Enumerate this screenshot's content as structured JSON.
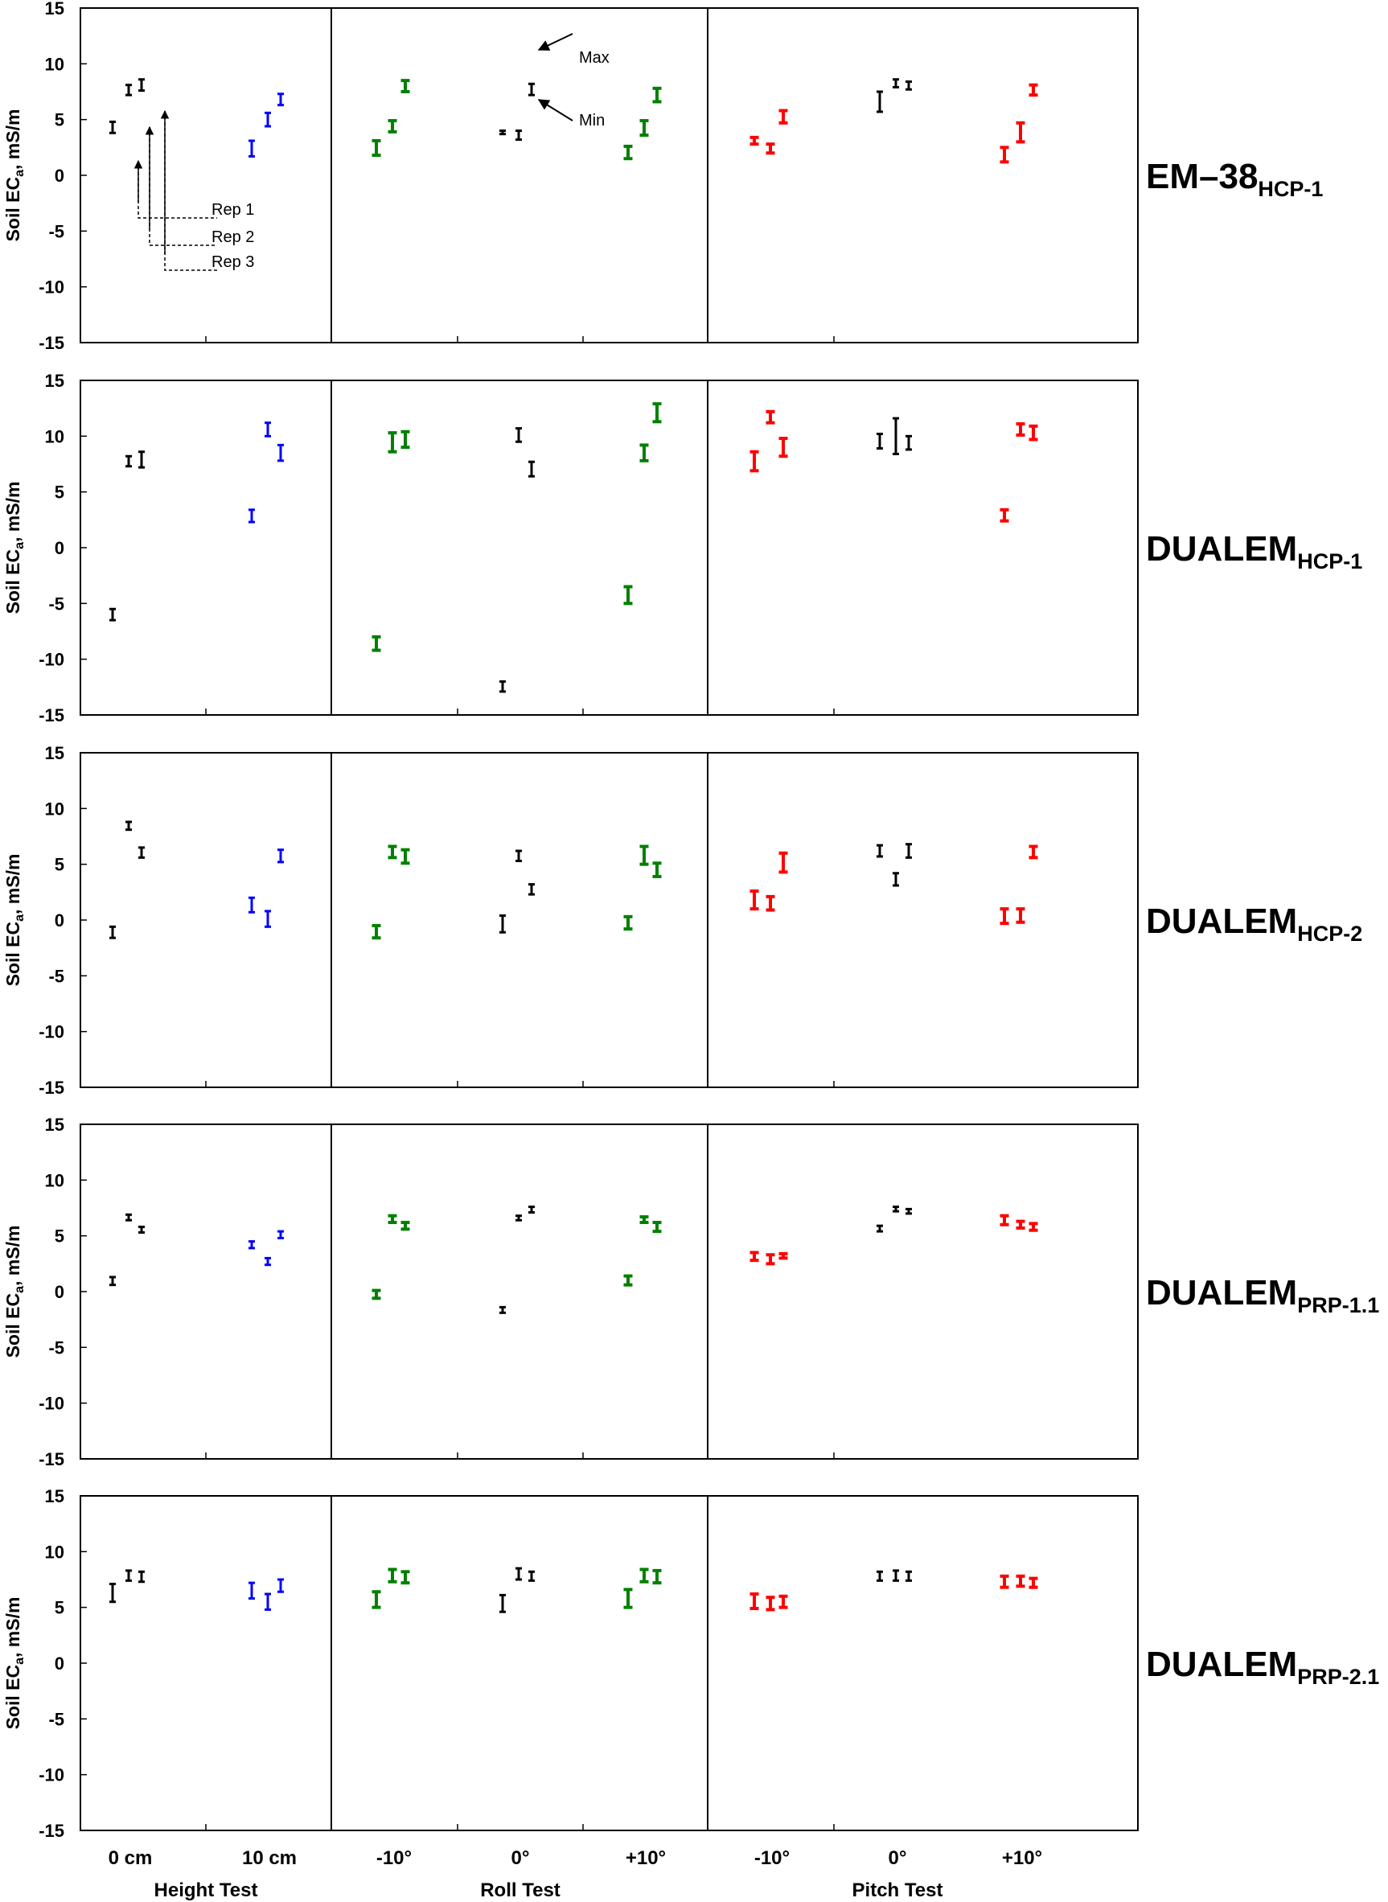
{
  "chart_data": {
    "type": "range",
    "y_ticks": [
      "15",
      "10",
      "5",
      "0",
      "-5",
      "-10",
      "-15"
    ],
    "ylim": [
      -15,
      15
    ],
    "ylabel": "Soil EC",
    "ylabel_sub": "a",
    "ylabel_unit": ", mS/m",
    "x_categories": [
      "0 cm",
      "10 cm",
      "-10°",
      "0°",
      "+10°",
      "-10°",
      "0°",
      "+10°"
    ],
    "x_groups": [
      "Height Test",
      "Roll Test",
      "Pitch Test"
    ],
    "category_colors": [
      "#000000",
      "#0000ff",
      "#008000",
      "#000000",
      "#008000",
      "#ff0000",
      "#000000",
      "#ff0000"
    ],
    "annotations": {
      "max_label": "Max",
      "min_label": "Min",
      "reps": [
        "Rep 1",
        "Rep 2",
        "Rep 3"
      ]
    },
    "panels": [
      {
        "name": "EM–38",
        "sub": "HCP-1",
        "ranges": [
          [
            [
              3.8,
              4.8
            ],
            [
              7.2,
              8.1
            ],
            [
              7.6,
              8.6
            ]
          ],
          [
            [
              1.7,
              3.1
            ],
            [
              4.4,
              5.6
            ],
            [
              6.3,
              7.3
            ]
          ],
          [
            [
              1.8,
              3.1
            ],
            [
              3.9,
              4.9
            ],
            [
              7.5,
              8.5
            ]
          ],
          [
            [
              3.7,
              4.0
            ],
            [
              3.2,
              4.0
            ],
            [
              7.2,
              8.2
            ]
          ],
          [
            [
              1.5,
              2.6
            ],
            [
              3.6,
              4.9
            ],
            [
              6.6,
              7.8
            ]
          ],
          [
            [
              2.8,
              3.4
            ],
            [
              2.0,
              2.8
            ],
            [
              4.7,
              5.8
            ]
          ],
          [
            [
              5.7,
              7.5
            ],
            [
              7.9,
              8.6
            ],
            [
              7.7,
              8.4
            ]
          ],
          [
            [
              1.2,
              2.5
            ],
            [
              3.0,
              4.7
            ],
            [
              7.2,
              8.1
            ]
          ]
        ]
      },
      {
        "name": "DUALEM",
        "sub": "HCP-1",
        "ranges": [
          [
            [
              -6.5,
              -5.5
            ],
            [
              7.3,
              8.2
            ],
            [
              7.2,
              8.6
            ]
          ],
          [
            [
              2.3,
              3.4
            ],
            [
              10.0,
              11.2
            ],
            [
              7.8,
              9.2
            ]
          ],
          [
            [
              -9.2,
              -8.0
            ],
            [
              8.6,
              10.3
            ],
            [
              9.0,
              10.4
            ]
          ],
          [
            [
              -12.9,
              -12.0
            ],
            [
              9.5,
              10.7
            ],
            [
              6.4,
              7.7
            ]
          ],
          [
            [
              -5.0,
              -3.5
            ],
            [
              7.8,
              9.2
            ],
            [
              11.3,
              12.9
            ]
          ],
          [
            [
              6.9,
              8.6
            ],
            [
              11.2,
              12.2
            ],
            [
              8.2,
              9.8
            ]
          ],
          [
            [
              8.9,
              10.2
            ],
            [
              8.4,
              11.6
            ],
            [
              8.8,
              10.0
            ]
          ],
          [
            [
              2.4,
              3.4
            ],
            [
              10.1,
              11.1
            ],
            [
              9.7,
              10.9
            ]
          ]
        ]
      },
      {
        "name": "DUALEM",
        "sub": "HCP-2",
        "ranges": [
          [
            [
              -1.6,
              -0.6
            ],
            [
              8.1,
              8.8
            ],
            [
              5.6,
              6.5
            ]
          ],
          [
            [
              0.7,
              2.0
            ],
            [
              -0.6,
              0.8
            ],
            [
              5.2,
              6.3
            ]
          ],
          [
            [
              -1.6,
              -0.5
            ],
            [
              5.6,
              6.6
            ],
            [
              5.1,
              6.3
            ]
          ],
          [
            [
              -1.1,
              0.4
            ],
            [
              5.3,
              6.2
            ],
            [
              2.3,
              3.2
            ]
          ],
          [
            [
              -0.8,
              0.3
            ],
            [
              5.0,
              6.6
            ],
            [
              3.9,
              5.1
            ]
          ],
          [
            [
              1.0,
              2.6
            ],
            [
              0.9,
              2.1
            ],
            [
              4.3,
              6.0
            ]
          ],
          [
            [
              5.7,
              6.7
            ],
            [
              3.1,
              4.2
            ],
            [
              5.6,
              6.8
            ]
          ],
          [
            [
              -0.3,
              1.0
            ],
            [
              -0.2,
              1.0
            ],
            [
              5.6,
              6.6
            ]
          ]
        ]
      },
      {
        "name": "DUALEM",
        "sub": "PRP-1.1",
        "ranges": [
          [
            [
              0.6,
              1.3
            ],
            [
              6.4,
              6.9
            ],
            [
              5.3,
              5.8
            ]
          ],
          [
            [
              3.9,
              4.5
            ],
            [
              2.4,
              3.0
            ],
            [
              4.8,
              5.4
            ]
          ],
          [
            [
              -0.6,
              0.1
            ],
            [
              6.2,
              6.8
            ],
            [
              5.6,
              6.2
            ]
          ],
          [
            [
              -1.9,
              -1.4
            ],
            [
              6.4,
              6.8
            ],
            [
              7.1,
              7.6
            ]
          ],
          [
            [
              0.6,
              1.4
            ],
            [
              6.2,
              6.7
            ],
            [
              5.4,
              6.2
            ]
          ],
          [
            [
              2.8,
              3.5
            ],
            [
              2.5,
              3.3
            ],
            [
              3.0,
              3.4
            ]
          ],
          [
            [
              5.4,
              5.9
            ],
            [
              7.2,
              7.6
            ],
            [
              7.0,
              7.4
            ]
          ],
          [
            [
              6.0,
              6.8
            ],
            [
              5.7,
              6.3
            ],
            [
              5.5,
              6.1
            ]
          ]
        ]
      },
      {
        "name": "DUALEM",
        "sub": "PRP-2.1",
        "ranges": [
          [
            [
              5.5,
              7.1
            ],
            [
              7.4,
              8.3
            ],
            [
              7.3,
              8.2
            ]
          ],
          [
            [
              5.8,
              7.2
            ],
            [
              4.8,
              6.2
            ],
            [
              6.4,
              7.5
            ]
          ],
          [
            [
              5.0,
              6.4
            ],
            [
              7.3,
              8.4
            ],
            [
              7.2,
              8.2
            ]
          ],
          [
            [
              4.6,
              6.1
            ],
            [
              7.5,
              8.5
            ],
            [
              7.4,
              8.2
            ]
          ],
          [
            [
              5.0,
              6.6
            ],
            [
              7.3,
              8.4
            ],
            [
              7.2,
              8.3
            ]
          ],
          [
            [
              4.9,
              6.2
            ],
            [
              4.8,
              5.9
            ],
            [
              5.0,
              6.0
            ]
          ],
          [
            [
              7.4,
              8.2
            ],
            [
              7.4,
              8.3
            ],
            [
              7.4,
              8.2
            ]
          ],
          [
            [
              6.8,
              7.8
            ],
            [
              6.9,
              7.8
            ],
            [
              6.8,
              7.6
            ]
          ]
        ]
      }
    ]
  }
}
